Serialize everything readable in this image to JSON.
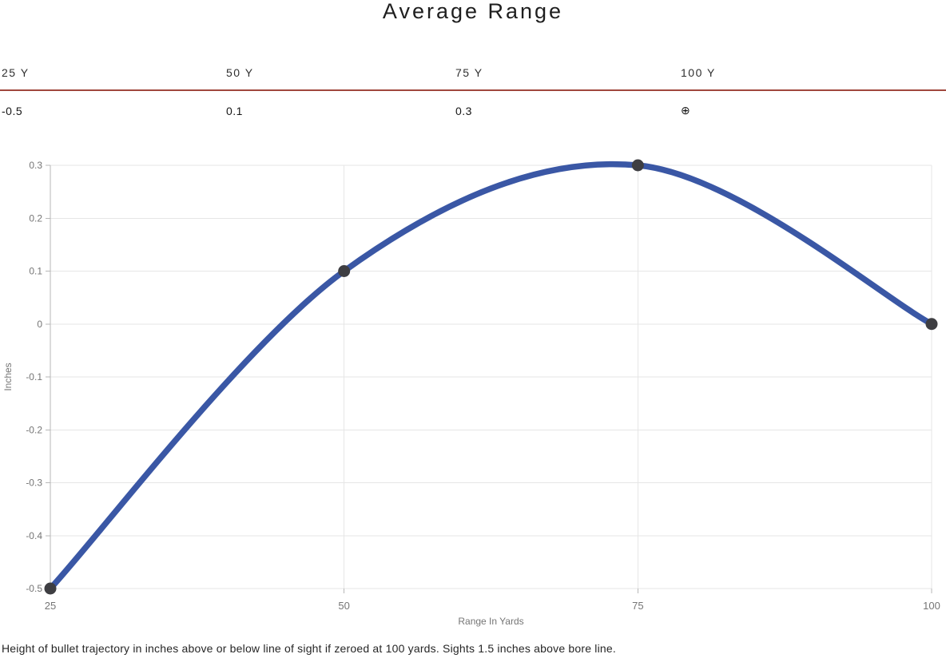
{
  "title": "Average Range",
  "summary": {
    "columns": [
      {
        "label": "25 Y",
        "value": "-0.5"
      },
      {
        "label": "50 Y",
        "value": "0.1"
      },
      {
        "label": "75 Y",
        "value": "0.3"
      },
      {
        "label": "100 Y",
        "value": "⊕"
      }
    ],
    "divider_color": "#a0473d"
  },
  "chart_data": {
    "type": "line",
    "title": "Average Range",
    "x": [
      25,
      50,
      75,
      100
    ],
    "series": [
      {
        "name": "Inches",
        "values": [
          -0.5,
          0.1,
          0.3,
          0
        ]
      }
    ],
    "xlabel": "Range In Yards",
    "ylabel": "Inches",
    "xticks": [
      25,
      50,
      75,
      100
    ],
    "yticks": [
      0.3,
      0.2,
      0.1,
      0,
      -0.1,
      -0.2,
      -0.3,
      -0.4,
      -0.5
    ],
    "xlim": [
      25,
      100
    ],
    "ylim": [
      -0.5,
      0.3
    ],
    "grid": true,
    "legend": "none",
    "curve": "smooth",
    "line_color": "#3a57a5",
    "point_color": "#3e3e42",
    "gridline_color": "#e6e6e6",
    "axis_color": "#b7b7b7",
    "tick_text_color": "#757575"
  },
  "caption": "Height of bullet trajectory in inches above or below line of sight if zeroed at 100 yards. Sights 1.5 inches above bore line."
}
